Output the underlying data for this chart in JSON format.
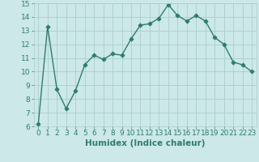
{
  "x": [
    0,
    1,
    2,
    3,
    4,
    5,
    6,
    7,
    8,
    9,
    10,
    11,
    12,
    13,
    14,
    15,
    16,
    17,
    18,
    19,
    20,
    21,
    22,
    23
  ],
  "y": [
    6.2,
    13.3,
    8.7,
    7.3,
    8.6,
    10.5,
    11.2,
    10.9,
    11.3,
    11.2,
    12.4,
    13.4,
    13.5,
    13.9,
    14.9,
    14.1,
    13.7,
    14.1,
    13.7,
    12.5,
    12.0,
    10.7,
    10.5,
    10.0
  ],
  "line_color": "#2e7d6e",
  "marker": "D",
  "bg_color": "#cce8e8",
  "grid_color": "#aacece",
  "xlabel": "Humidex (Indice chaleur)",
  "ylim": [
    6,
    15
  ],
  "xlim_min": -0.5,
  "xlim_max": 23.5,
  "yticks": [
    6,
    7,
    8,
    9,
    10,
    11,
    12,
    13,
    14,
    15
  ],
  "xticks": [
    0,
    1,
    2,
    3,
    4,
    5,
    6,
    7,
    8,
    9,
    10,
    11,
    12,
    13,
    14,
    15,
    16,
    17,
    18,
    19,
    20,
    21,
    22,
    23
  ],
  "tick_label_fontsize": 6.5,
  "xlabel_fontsize": 7.5,
  "line_width": 1.0,
  "marker_size": 2.5
}
